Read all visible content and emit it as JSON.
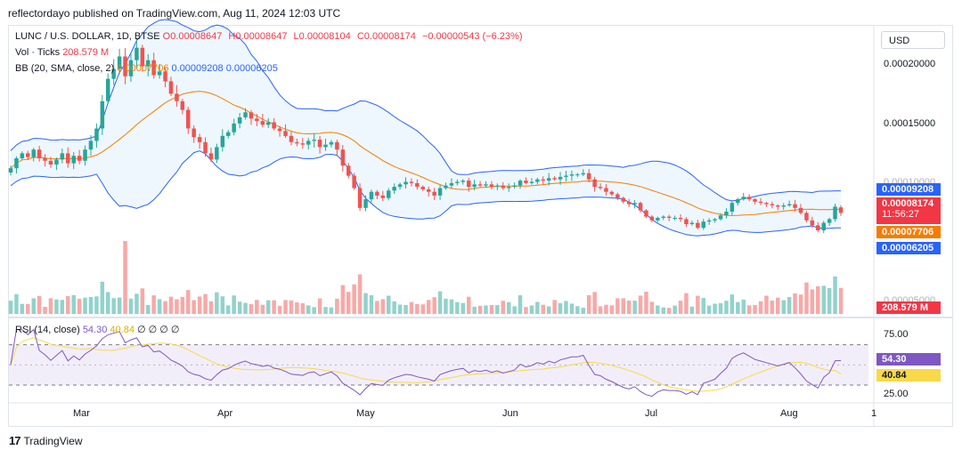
{
  "header": "reflectordayo published on TradingView.com, Aug 11, 2024 12:03 UTC",
  "legend": {
    "symbol": "LUNC / U.S. DOLLAR, 1D, BTSE",
    "open": "O0.00008647",
    "high": "H0.00008647",
    "low": "L0.00008104",
    "close": "C0.00008174",
    "change": "−0.00000543 (−6.23%)",
    "vol_label": "Vol · Ticks",
    "vol_value": "208.579 M",
    "bb_label": "BB (20, SMA, close, 2)",
    "bb_basis": "0.00007706",
    "bb_upper": "0.00009208",
    "bb_lower": "0.00006205",
    "rsi_label": "RSI (14, close)",
    "rsi_value": "54.30",
    "rsi_ma": "40.84",
    "rsi_extra": "∅ ∅ ∅ ∅"
  },
  "currency_button": "USD",
  "price_axis": [
    "0.00020000",
    "0.00015000",
    "0.00010000",
    "0.00005000"
  ],
  "price_tags": {
    "upper": "0.00009208",
    "close": "0.00008174",
    "countdown": "11:56:27",
    "basis": "0.00007706",
    "lower": "0.00006205",
    "volume": "208.579 M",
    "rsi": "54.30",
    "rsi_ma": "40.84"
  },
  "rsi_axis": [
    "75.00",
    "25.00"
  ],
  "time_axis": [
    "Mar",
    "Apr",
    "May",
    "Jun",
    "Jul",
    "Aug",
    "1"
  ],
  "footer": "TradingView",
  "colors": {
    "up": "#26a69a",
    "down": "#ef5350",
    "bb_basis": "#f57c00",
    "bb_band": "#2962ff",
    "rsi": "#7e57c2",
    "rsi_ma": "#f9d949"
  },
  "chart_data": {
    "type": "candlestick",
    "title": "LUNC / U.S. DOLLAR, 1D, BTSE",
    "x_range": [
      "2024-02-14",
      "2024-08-11"
    ],
    "y_range": [
      5.65e-05,
      0.000232
    ],
    "price_close_series": [
      0.000118,
      0.000126,
      0.00013,
      0.000127,
      0.000133,
      0.000126,
      0.000124,
      0.000121,
      0.000125,
      0.00013,
      0.000122,
      0.000128,
      0.000124,
      0.000133,
      0.00014,
      0.00015,
      0.000172,
      0.00019,
      0.000198,
      0.000208,
      0.000192,
      0.000205,
      0.000215,
      0.0002,
      0.000205,
      0.000193,
      0.000196,
      0.000188,
      0.000178,
      0.000172,
      0.000165,
      0.00015,
      0.000143,
      0.000139,
      0.00013,
      0.000125,
      0.000135,
      0.000144,
      0.000147,
      0.000154,
      0.000159,
      0.000163,
      0.000158,
      0.000156,
      0.000153,
      0.000155,
      0.00015,
      0.000148,
      0.000144,
      0.000139,
      0.000138,
      0.000137,
      0.00014,
      0.000141,
      0.000135,
      0.000137,
      0.000139,
      0.000133,
      0.00012,
      0.000112,
      0.000102,
      8.6e-05,
      9.3e-05,
      9.9e-05,
      9.6e-05,
      9.4e-05,
      0.0001,
      0.000103,
      0.000105,
      0.000107,
      0.000106,
      0.000103,
      0.000101,
      9.9e-05,
      9.6e-05,
      0.000102,
      0.000104,
      0.000106,
      0.000107,
      0.000108,
      0.000103,
      0.000105,
      0.000104,
      0.000105,
      0.000103,
      0.000104,
      0.000102,
      0.000103,
      0.000104,
      0.000108,
      0.000106,
      0.000107,
      0.000109,
      0.000108,
      0.00011,
      0.000109,
      0.000111,
      0.000112,
      0.000113,
      0.000113,
      0.000114,
      0.000109,
      0.000103,
      0.000102,
      9.9e-05,
      9.7e-05,
      9.4e-05,
      9.1e-05,
      8.9e-05,
      9e-05,
      8.4e-05,
      7.9e-05,
      7.6e-05,
      7.8e-05,
      7.9e-05,
      7.8e-05,
      7.8e-05,
      7.7e-05,
      7.3e-05,
      7.4e-05,
      7e-05,
      7.5e-05,
      7.6e-05,
      7.7e-05,
      8e-05,
      8.3e-05,
      9e-05,
      9.3e-05,
      9.5e-05,
      9.3e-05,
      9.1e-05,
      9e-05,
      8.9e-05,
      8.8e-05,
      8.7e-05,
      8.8e-05,
      8.9e-05,
      8.6e-05,
      8.2e-05,
      7.6e-05,
      7.2e-05,
      6.8e-05,
      7.4e-05,
      7.7e-05,
      8.7e-05,
      8.2e-05
    ],
    "bollinger": {
      "basis_last": 7.706e-05,
      "upper_last": 9.208e-05,
      "lower_last": 6.205e-05
    },
    "rsi": {
      "last": 54.3,
      "ma_last": 40.84,
      "levels": [
        70,
        50,
        30
      ],
      "range": [
        15,
        90
      ]
    },
    "x_tick_labels": [
      "Mar",
      "Apr",
      "May",
      "Jun",
      "Jul",
      "Aug",
      "1"
    ],
    "y_tick_labels": [
      "0.00020000",
      "0.00015000",
      "0.00010000"
    ]
  }
}
